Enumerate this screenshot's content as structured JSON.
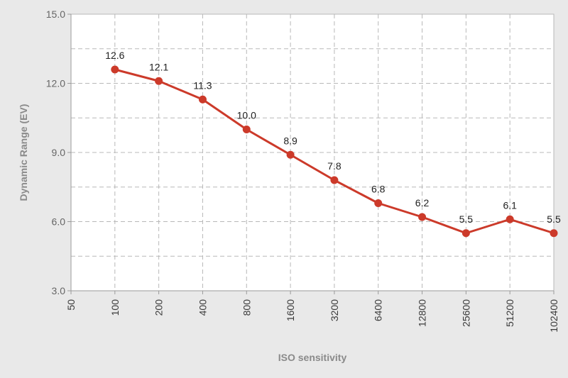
{
  "chart_data": {
    "type": "line",
    "title": "",
    "xlabel": "ISO sensitivity",
    "ylabel": "Dynamic Range (EV)",
    "categories": [
      "50",
      "100",
      "200",
      "400",
      "800",
      "1600",
      "3200",
      "6400",
      "12800",
      "25600",
      "51200",
      "102400"
    ],
    "series": [
      {
        "values": [
          null,
          12.6,
          12.1,
          11.3,
          10.0,
          8.9,
          7.8,
          6.8,
          6.2,
          5.5,
          6.1,
          5.5
        ],
        "color": "#cc3a2a"
      }
    ],
    "data_labels": [
      "",
      "12.6",
      "12.1",
      "11.3",
      "10.0",
      "8.9",
      "7.8",
      "6.8",
      "6.2",
      "5.5",
      "6.1",
      "5.5"
    ],
    "ylim": [
      3.0,
      15.0
    ],
    "yticks": [
      3.0,
      6.0,
      9.0,
      12.0,
      15.0
    ],
    "ytick_labels": [
      "3.0",
      "6.0",
      "9.0",
      "12.0",
      "15.0"
    ],
    "ygrid_minor": [
      4.5,
      7.5,
      10.5,
      13.5
    ],
    "grid": true,
    "legend": "none",
    "colors": {
      "background": "#e9e9e9",
      "plot_area": "#ffffff",
      "grid": "#b8b8b8",
      "axis": "#9a9a9a",
      "line": "#cc3a2a"
    }
  }
}
